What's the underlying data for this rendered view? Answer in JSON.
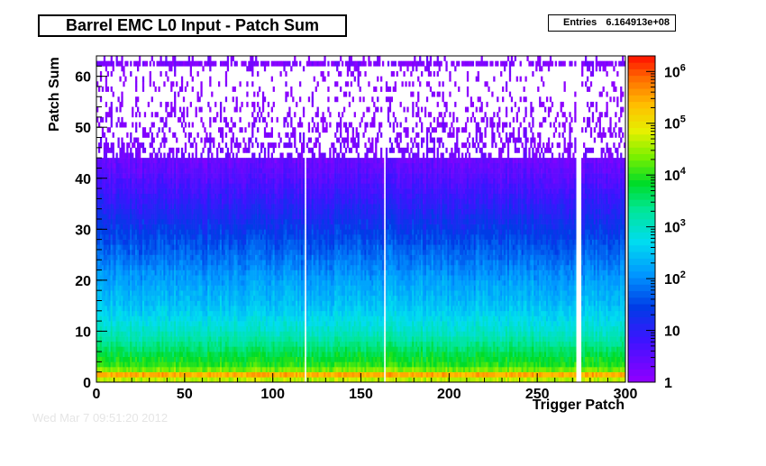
{
  "chart_data": {
    "type": "heatmap",
    "title": "Barrel EMC L0 Input - Patch Sum",
    "stats": {
      "label": "Entries",
      "value": "6.164913e+08"
    },
    "xlabel": "Trigger Patch",
    "ylabel": "Patch Sum",
    "xlim": [
      0,
      300
    ],
    "ylim": [
      0,
      64
    ],
    "x_ticks": [
      "0",
      "50",
      "100",
      "150",
      "200",
      "250",
      "300"
    ],
    "y_ticks": [
      "0",
      "10",
      "20",
      "30",
      "40",
      "50",
      "60"
    ],
    "z_scale": "log",
    "zlim": [
      1,
      2000000
    ],
    "z_ticks": [
      {
        "base": "1",
        "exp": ""
      },
      {
        "base": "10",
        "exp": ""
      },
      {
        "base": "10",
        "exp": "2"
      },
      {
        "base": "10",
        "exp": "3"
      },
      {
        "base": "10",
        "exp": "4"
      },
      {
        "base": "10",
        "exp": "5"
      },
      {
        "base": "10",
        "exp": "6"
      }
    ],
    "empty_columns": [
      118,
      163,
      272,
      273,
      274
    ],
    "profile": {
      "description_points_patch_sum": [
        0,
        1,
        2,
        3,
        5,
        10,
        15,
        20,
        25,
        30,
        35,
        40,
        45,
        50,
        55,
        60,
        62
      ],
      "typical_counts": [
        1000,
        2000000,
        40000,
        12000,
        6000,
        1000,
        300,
        150,
        60,
        25,
        10,
        4,
        2,
        1.4,
        1.1,
        1.0,
        1.5
      ]
    }
  },
  "footer": {
    "text": "Wed Mar  7 09:51:20 2012"
  }
}
